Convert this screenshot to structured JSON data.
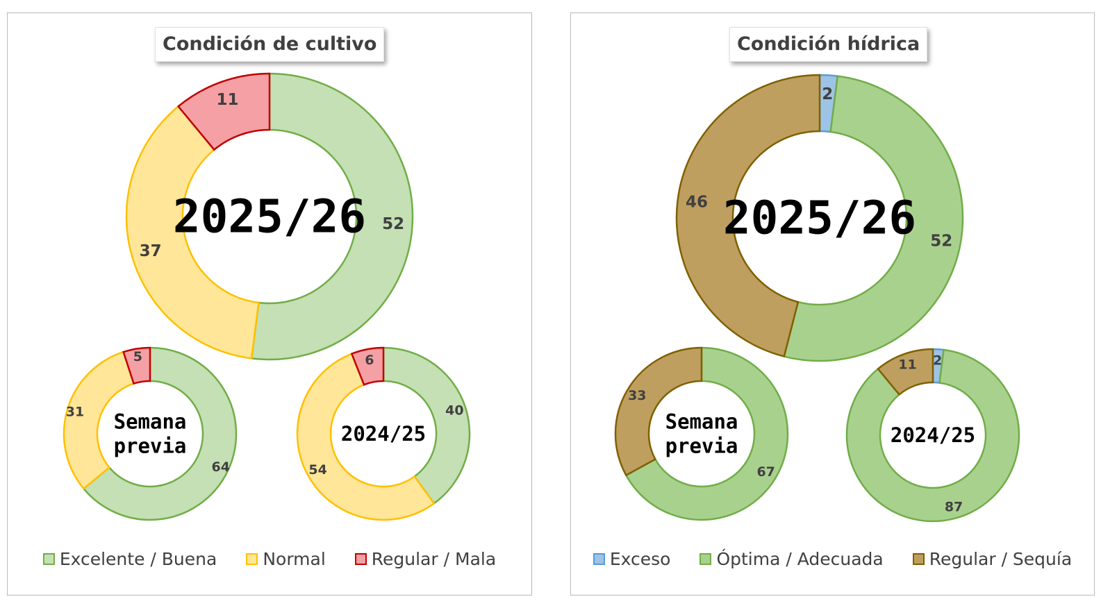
{
  "chart_data": [
    {
      "type": "donut",
      "title": "Condición de cultivo",
      "categories": [
        "Excelente / Buena",
        "Normal",
        "Regular / Mala"
      ],
      "colors": {
        "fills": [
          "#c5e0b4",
          "#ffe699",
          "#f4a0a4"
        ],
        "strokes": [
          "#70ad47",
          "#ffc000",
          "#c00000"
        ]
      },
      "rings": [
        {
          "label": "2025/26",
          "values": [
            52,
            37,
            11
          ]
        },
        {
          "label": "Semana previa",
          "values": [
            64,
            31,
            5
          ]
        },
        {
          "label": "2024/25",
          "values": [
            40,
            54,
            6
          ]
        }
      ]
    },
    {
      "type": "donut",
      "title": "Condición hídrica",
      "categories": [
        "Exceso",
        "Óptima / Adecuada",
        "Regular / Sequía"
      ],
      "colors": {
        "fills": [
          "#9dc3e6",
          "#a9d18e",
          "#bf9f5f"
        ],
        "strokes": [
          "#5b9bd5",
          "#70ad47",
          "#7f6000"
        ]
      },
      "rings": [
        {
          "label": "2025/26",
          "values": [
            2,
            52,
            46
          ]
        },
        {
          "label": "Semana previa",
          "values": [
            0,
            67,
            33
          ]
        },
        {
          "label": "2024/25",
          "values": [
            2,
            87,
            11
          ]
        }
      ]
    }
  ]
}
